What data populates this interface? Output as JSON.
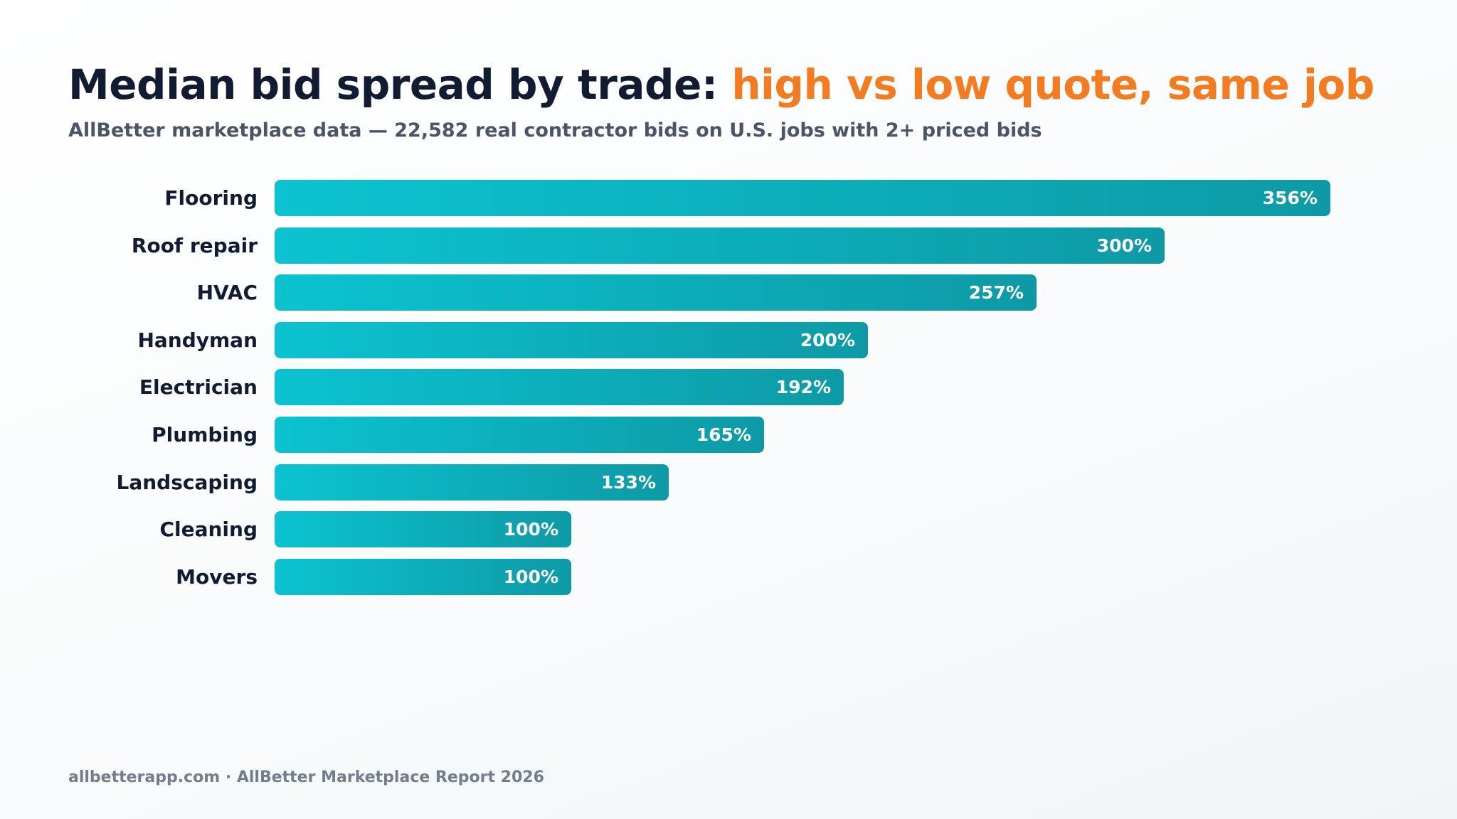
{
  "title": {
    "main": "Median bid spread by trade: ",
    "accent": "high vs low quote, same job"
  },
  "subtitle": "AllBetter marketplace data — 22,582 real contractor bids on U.S. jobs with 2+ priced bids",
  "footer": "allbetterapp.com · AllBetter Marketplace Report 2026",
  "colors": {
    "title": "#111c33",
    "accent": "#f47b20",
    "bar_start": "#0cc3d0",
    "bar_end": "#0d9aa6",
    "bar_text": "#ffffff"
  },
  "chart_data": {
    "type": "bar",
    "orientation": "horizontal",
    "categories": [
      "Flooring",
      "Roof repair",
      "HVAC",
      "Handyman",
      "Electrician",
      "Plumbing",
      "Landscaping",
      "Cleaning",
      "Movers"
    ],
    "values": [
      356,
      300,
      257,
      200,
      192,
      165,
      133,
      100,
      100
    ],
    "value_labels": [
      "356%",
      "300%",
      "257%",
      "200%",
      "192%",
      "165%",
      "133%",
      "100%",
      "100%"
    ],
    "unit": "%",
    "xlim": [
      0,
      356
    ],
    "grid": false,
    "legend": "none"
  }
}
